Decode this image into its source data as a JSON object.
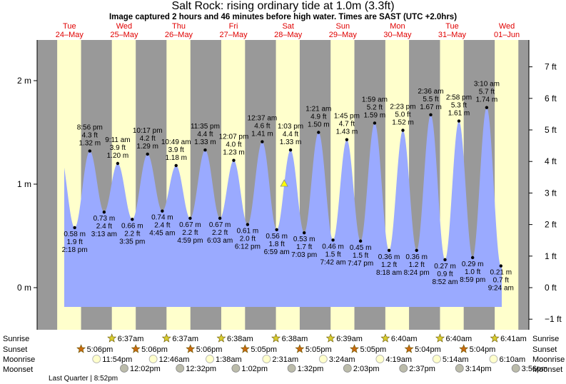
{
  "header": {
    "title": "Salt Rock: rising  ordinary tide at 1.0m (3.3ft)",
    "subtitle": "Image captured 2 hours and 46 minutes before high water. Times are SAST (UTC +2.0hrs)"
  },
  "colors": {
    "day_band": "#ffffcc",
    "night_band": "#999999",
    "tide_fill": "#9aaaff",
    "day_label": "#e00000",
    "marker": "#ffff00"
  },
  "chart_data": {
    "type": "area",
    "title": "Salt Rock: rising  ordinary tide at 1.0m (3.3ft)",
    "y_unit_left": "m",
    "y_unit_right": "ft",
    "ylim_m": [
      -0.2,
      2.45
    ],
    "left_ticks": [
      {
        "v": 0,
        "label": "0 m"
      },
      {
        "v": 1,
        "label": "1 m"
      },
      {
        "v": 2,
        "label": "2 m"
      }
    ],
    "right_ticks": [
      "−1 ft",
      "0 ft",
      "1 ft",
      "2 ft",
      "3 ft",
      "4 ft",
      "5 ft",
      "6 ft",
      "7 ft"
    ],
    "days": [
      {
        "dow": "Tue",
        "date": "24–May"
      },
      {
        "dow": "Wed",
        "date": "25–May"
      },
      {
        "dow": "Thu",
        "date": "26–May"
      },
      {
        "dow": "Fri",
        "date": "27–May"
      },
      {
        "dow": "Sat",
        "date": "28–May"
      },
      {
        "dow": "Sun",
        "date": "29–May"
      },
      {
        "dow": "Mon",
        "date": "30–May"
      },
      {
        "dow": "Tue",
        "date": "31–May"
      },
      {
        "dow": "Wed",
        "date": "01–Jun"
      }
    ],
    "extrema": [
      {
        "day": 0,
        "time": "2:18 pm",
        "m": 0.58,
        "ft": "1.9 ft",
        "type": "low",
        "h": 14.3
      },
      {
        "day": 0,
        "time": "8:56 pm",
        "m": 1.32,
        "ft": "4.3 ft",
        "type": "high",
        "h": 20.93
      },
      {
        "day": 1,
        "time": "3:13 am",
        "m": 0.73,
        "ft": "2.4 ft",
        "type": "low",
        "h": 3.22
      },
      {
        "day": 1,
        "time": "9:11 am",
        "m": 1.2,
        "ft": "3.9 ft",
        "type": "high",
        "h": 9.18
      },
      {
        "day": 1,
        "time": "3:35 pm",
        "m": 0.66,
        "ft": "2.2 ft",
        "type": "low",
        "h": 15.58
      },
      {
        "day": 1,
        "time": "10:17 pm",
        "m": 1.29,
        "ft": "4.2 ft",
        "type": "high",
        "h": 22.28
      },
      {
        "day": 2,
        "time": "4:45 am",
        "m": 0.74,
        "ft": "2.4 ft",
        "type": "low",
        "h": 4.75
      },
      {
        "day": 2,
        "time": "10:49 am",
        "m": 1.18,
        "ft": "3.9 ft",
        "type": "high",
        "h": 10.82
      },
      {
        "day": 2,
        "time": "4:59 pm",
        "m": 0.67,
        "ft": "2.2 ft",
        "type": "low",
        "h": 16.98
      },
      {
        "day": 2,
        "time": "11:35 pm",
        "m": 1.33,
        "ft": "4.4 ft",
        "type": "high",
        "h": 23.58
      },
      {
        "day": 3,
        "time": "6:03 am",
        "m": 0.67,
        "ft": "2.2 ft",
        "type": "low",
        "h": 6.05
      },
      {
        "day": 3,
        "time": "12:07 pm",
        "m": 1.23,
        "ft": "4.0 ft",
        "type": "high",
        "h": 12.12
      },
      {
        "day": 3,
        "time": "6:12 pm",
        "m": 0.61,
        "ft": "2.0 ft",
        "type": "low",
        "h": 18.2
      },
      {
        "day": 4,
        "time": "12:37 am",
        "m": 1.41,
        "ft": "4.6 ft",
        "type": "high",
        "h": 0.62
      },
      {
        "day": 4,
        "time": "6:59 am",
        "m": 0.56,
        "ft": "1.8 ft",
        "type": "low",
        "h": 6.98
      },
      {
        "day": 4,
        "time": "1:03 pm",
        "m": 1.33,
        "ft": "4.4 ft",
        "type": "high",
        "h": 13.05
      },
      {
        "day": 4,
        "time": "7:03 pm",
        "m": 0.53,
        "ft": "1.7 ft",
        "type": "low",
        "h": 19.05
      },
      {
        "day": 5,
        "time": "1:21 am",
        "m": 1.5,
        "ft": "4.9 ft",
        "type": "high",
        "h": 1.35
      },
      {
        "day": 5,
        "time": "7:42 am",
        "m": 0.46,
        "ft": "1.5 ft",
        "type": "low",
        "h": 7.7
      },
      {
        "day": 5,
        "time": "1:45 pm",
        "m": 1.43,
        "ft": "4.7 ft",
        "type": "high",
        "h": 13.75
      },
      {
        "day": 5,
        "time": "7:47 pm",
        "m": 0.45,
        "ft": "1.5 ft",
        "type": "low",
        "h": 19.78
      },
      {
        "day": 6,
        "time": "1:59 am",
        "m": 1.59,
        "ft": "5.2 ft",
        "type": "high",
        "h": 1.98
      },
      {
        "day": 6,
        "time": "8:18 am",
        "m": 0.36,
        "ft": "1.2 ft",
        "type": "low",
        "h": 8.3
      },
      {
        "day": 6,
        "time": "2:23 pm",
        "m": 1.52,
        "ft": "5.0 ft",
        "type": "high",
        "h": 14.38
      },
      {
        "day": 6,
        "time": "8:24 pm",
        "m": 0.36,
        "ft": "1.2 ft",
        "type": "low",
        "h": 20.4
      },
      {
        "day": 7,
        "time": "2:36 am",
        "m": 1.67,
        "ft": "5.5 ft",
        "type": "high",
        "h": 2.6
      },
      {
        "day": 7,
        "time": "8:52 am",
        "m": 0.27,
        "ft": "0.9 ft",
        "type": "low",
        "h": 8.87
      },
      {
        "day": 7,
        "time": "2:58 pm",
        "m": 1.61,
        "ft": "5.3 ft",
        "type": "high",
        "h": 14.97
      },
      {
        "day": 7,
        "time": "8:59 pm",
        "m": 0.29,
        "ft": "1.0 ft",
        "type": "low",
        "h": 20.98
      },
      {
        "day": 8,
        "time": "3:10 am",
        "m": 1.74,
        "ft": "5.7 ft",
        "type": "high",
        "h": 3.17
      },
      {
        "day": 8,
        "time": "9:24 am",
        "m": 0.21,
        "ft": "0.7 ft",
        "type": "low",
        "h": 9.4
      }
    ],
    "current": {
      "m": 1.0,
      "h": 10.28,
      "day": 4
    },
    "sun_moon": {
      "sunrise": [
        "6:37am",
        "6:37am",
        "6:38am",
        "6:38am",
        "6:39am",
        "6:40am",
        "6:40am",
        "6:41am"
      ],
      "sunset": [
        "5:06pm",
        "5:06pm",
        "5:06pm",
        "5:05pm",
        "5:05pm",
        "5:05pm",
        "5:04pm",
        "5:04pm"
      ],
      "moonrise": [
        "11:54pm",
        "12:46am",
        "1:38am",
        "2:31am",
        "3:24am",
        "4:19am",
        "5:14am",
        "6:10am"
      ],
      "moonset": [
        "12:02pm",
        "12:32pm",
        "1:02pm",
        "1:32pm",
        "2:03pm",
        "2:37pm",
        "3:14pm",
        "3:56pm"
      ]
    },
    "row_labels": {
      "sunrise": "Sunrise",
      "sunset": "Sunset",
      "moonrise": "Moonrise",
      "moonset": "Moonset"
    },
    "moon_phase_note": "Last Quarter | 8:52pm"
  }
}
